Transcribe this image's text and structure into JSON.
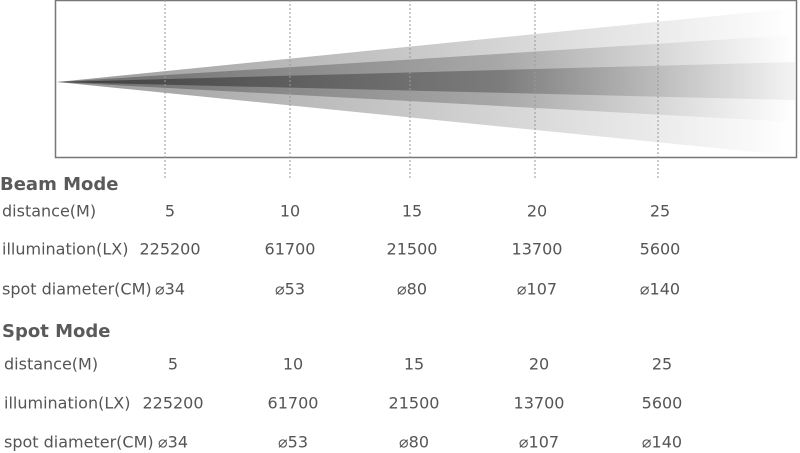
{
  "sections": [
    {
      "title": "Beam Mode",
      "rows": [
        {
          "label": "distance(M)",
          "values": [
            5,
            10,
            15,
            20,
            25
          ]
        },
        {
          "label": "illumination(LX)",
          "values": [
            225200,
            61700,
            21500,
            13700,
            5600
          ]
        },
        {
          "label": "spot diameter(CM)",
          "values": [
            "⌀34",
            "⌀53",
            "⌀80",
            "⌀107",
            "⌀140"
          ]
        }
      ]
    },
    {
      "title": "Spot Mode",
      "rows": [
        {
          "label": "distance(M)",
          "values": [
            5,
            10,
            15,
            20,
            25
          ]
        },
        {
          "label": "illumination(LX)",
          "values": [
            225200,
            61700,
            21500,
            13700,
            5600
          ]
        },
        {
          "label": "spot diameter(CM)",
          "values": [
            "⌀34",
            "⌀53",
            "⌀80",
            "⌀107",
            "⌀140"
          ]
        }
      ]
    }
  ]
}
